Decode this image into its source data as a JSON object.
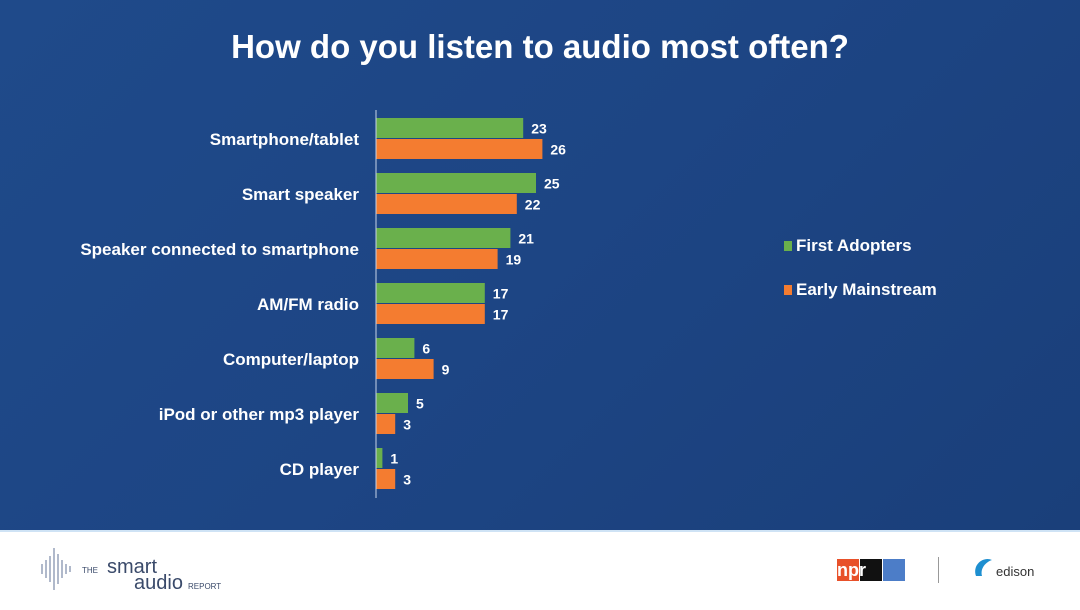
{
  "chart_data": {
    "type": "bar",
    "orientation": "horizontal",
    "title": "How do you listen to audio most often?",
    "categories": [
      "Smartphone/tablet",
      "Smart speaker",
      "Speaker connected to smartphone",
      "AM/FM radio",
      "Computer/laptop",
      "iPod or other mp3 player",
      "CD player"
    ],
    "series": [
      {
        "name": "First Adopters",
        "color": "#6ab04c",
        "values": [
          23,
          25,
          21,
          17,
          6,
          5,
          1
        ]
      },
      {
        "name": "Early Mainstream",
        "color": "#f47c30",
        "values": [
          26,
          22,
          19,
          17,
          9,
          3,
          3
        ]
      }
    ],
    "legend_position": "right",
    "grid": false,
    "data_labels": true
  },
  "footer": {
    "report_logo": {
      "the": "THE",
      "smart": "smart",
      "audio": "audio",
      "report": "REPORT"
    },
    "npr_logo": "npr",
    "edison_logo": "edison"
  },
  "colors": {
    "background": "#1f4a8a",
    "text": "#ffffff"
  }
}
